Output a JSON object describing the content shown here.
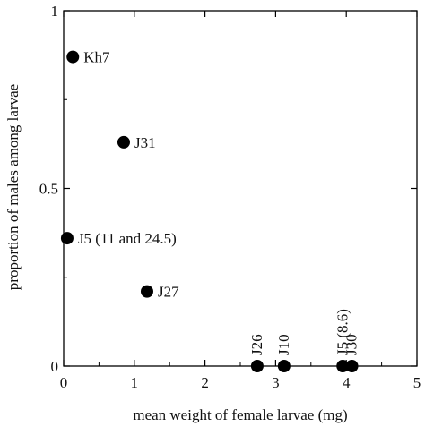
{
  "chart_data": {
    "type": "scatter",
    "title": "",
    "xlabel": "mean weight of female larvae (mg)",
    "ylabel": "proportion of males among larvae",
    "xlim": [
      0,
      5
    ],
    "ylim": [
      0,
      1
    ],
    "grid": false,
    "x_ticks": [
      {
        "value": 0,
        "label": "0"
      },
      {
        "value": 1,
        "label": "1"
      },
      {
        "value": 2,
        "label": "2"
      },
      {
        "value": 3,
        "label": "3"
      },
      {
        "value": 4,
        "label": "4"
      },
      {
        "value": 5,
        "label": "5"
      }
    ],
    "y_ticks": [
      {
        "value": 0,
        "label": "0"
      },
      {
        "value": 0.5,
        "label": "0.5"
      },
      {
        "value": 1,
        "label": "1"
      }
    ],
    "points": [
      {
        "label": "Kh7",
        "x": 0.13,
        "y": 0.87,
        "label_orientation": "horizontal"
      },
      {
        "label": "J31",
        "x": 0.85,
        "y": 0.63,
        "label_orientation": "horizontal"
      },
      {
        "label": "J5 (11 and 24.5)",
        "x": 0.05,
        "y": 0.36,
        "label_orientation": "horizontal"
      },
      {
        "label": "J27",
        "x": 1.18,
        "y": 0.21,
        "label_orientation": "horizontal"
      },
      {
        "label": "J26",
        "x": 2.74,
        "y": 0.0,
        "label_orientation": "vertical"
      },
      {
        "label": "J10",
        "x": 3.12,
        "y": 0.0,
        "label_orientation": "vertical"
      },
      {
        "label": "J5 (8.6)",
        "x": 3.95,
        "y": 0.0,
        "label_orientation": "vertical"
      },
      {
        "label": "J30",
        "x": 4.08,
        "y": 0.0,
        "label_orientation": "vertical"
      }
    ],
    "marker_color": "#000000"
  }
}
